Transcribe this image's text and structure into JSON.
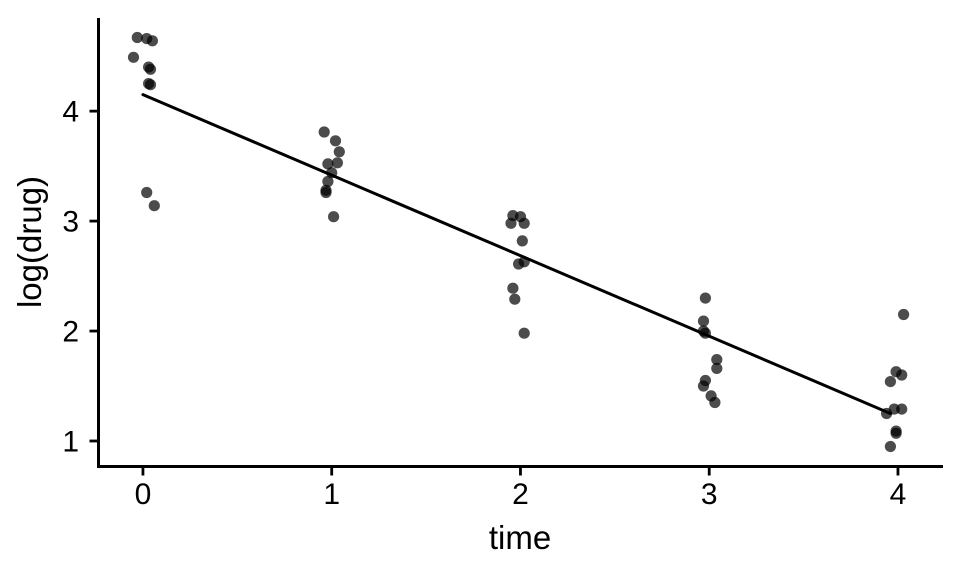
{
  "chart_data": {
    "type": "scatter",
    "title": "",
    "xlabel": "time",
    "ylabel": "log(drug)",
    "x_ticks": [
      0,
      1,
      2,
      3,
      4
    ],
    "y_ticks": [
      1,
      2,
      3,
      4
    ],
    "xlim": [
      -0.2355,
      4.237
    ],
    "ylim": [
      0.768,
      4.847
    ],
    "grid": "off",
    "legend": "none",
    "point_color": "#000000",
    "point_opacity": 0.7,
    "line_color": "#000000",
    "axis_color": "#000000",
    "points": [
      [
        -0.03,
        4.67
      ],
      [
        0.02,
        4.66
      ],
      [
        0.05,
        4.64
      ],
      [
        -0.05,
        4.49
      ],
      [
        0.03,
        4.4
      ],
      [
        0.04,
        4.38
      ],
      [
        0.03,
        4.25
      ],
      [
        0.04,
        4.24
      ],
      [
        0.02,
        3.26
      ],
      [
        0.06,
        3.14
      ],
      [
        0.96,
        3.81
      ],
      [
        1.02,
        3.73
      ],
      [
        1.04,
        3.63
      ],
      [
        1.03,
        3.53
      ],
      [
        0.98,
        3.52
      ],
      [
        1.0,
        3.44
      ],
      [
        0.98,
        3.36
      ],
      [
        0.97,
        3.28
      ],
      [
        0.97,
        3.26
      ],
      [
        1.01,
        3.04
      ],
      [
        1.96,
        3.05
      ],
      [
        2.0,
        3.04
      ],
      [
        1.95,
        2.98
      ],
      [
        2.02,
        2.98
      ],
      [
        2.01,
        2.82
      ],
      [
        2.02,
        2.63
      ],
      [
        1.99,
        2.61
      ],
      [
        1.96,
        2.39
      ],
      [
        1.97,
        2.29
      ],
      [
        2.02,
        1.98
      ],
      [
        2.98,
        2.3
      ],
      [
        2.97,
        2.09
      ],
      [
        2.97,
        2.0
      ],
      [
        2.98,
        1.98
      ],
      [
        3.04,
        1.74
      ],
      [
        3.04,
        1.66
      ],
      [
        2.98,
        1.55
      ],
      [
        2.97,
        1.5
      ],
      [
        3.01,
        1.41
      ],
      [
        3.03,
        1.35
      ],
      [
        4.03,
        2.15
      ],
      [
        3.99,
        1.63
      ],
      [
        4.02,
        1.6
      ],
      [
        3.96,
        1.54
      ],
      [
        3.98,
        1.29
      ],
      [
        4.02,
        1.29
      ],
      [
        3.94,
        1.25
      ],
      [
        3.99,
        1.09
      ],
      [
        3.99,
        1.07
      ],
      [
        3.96,
        0.95
      ]
    ],
    "fit_line": {
      "t1": 0.0,
      "v1": 4.15,
      "t2": 3.96,
      "v2": 1.25
    }
  }
}
